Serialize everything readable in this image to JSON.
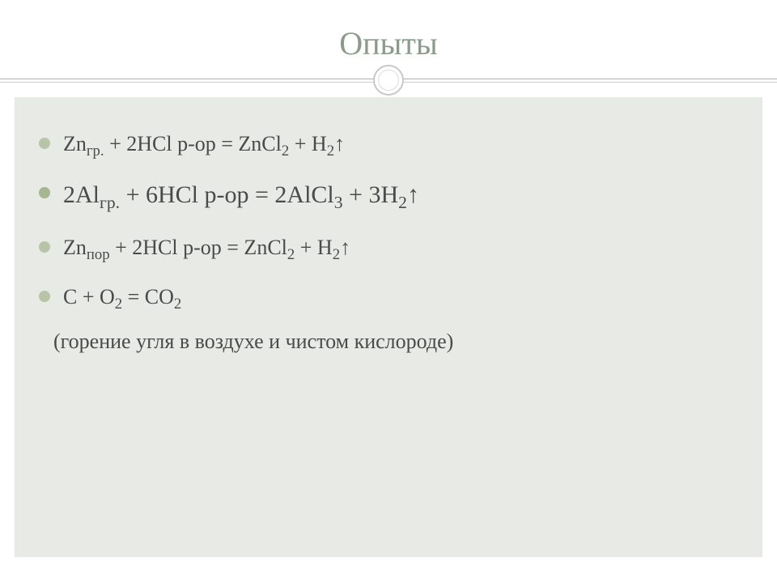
{
  "slide": {
    "title": "Опыты",
    "title_color": "#8a9b8a",
    "title_fontsize": 40,
    "background_color": "#ffffff",
    "content_background": "#e8eae6",
    "text_color": "#4a4a4a",
    "body_fontsize": 26,
    "emphasis_fontsize": 30,
    "bullet_colors": [
      "#b8c4a8",
      "#a6b78f",
      "#b8c4a8",
      "#b8c4a8"
    ],
    "items": [
      {
        "prefix": "Zn",
        "sub1": "гр.",
        "mid": " + 2HCl р-ор = ZnCl",
        "sub2": "2",
        "mid2": " + H",
        "sub3": "2",
        "suffix": "↑",
        "emphasis": false
      },
      {
        "prefix": "2Al",
        "sub1": "гр.",
        "mid": " + 6HCl р-ор = 2AlCl",
        "sub2": "3",
        "mid2": " + 3H",
        "sub3": "2",
        "suffix": "↑",
        "emphasis": true
      },
      {
        "prefix": "Zn",
        "sub1": "пор",
        "mid": " + 2HCl р-ор = ZnCl",
        "sub2": "2",
        "mid2": " + H",
        "sub3": "2",
        "suffix": "↑",
        "emphasis": false
      },
      {
        "prefix": "C + O",
        "sub1": "2",
        "mid": " = CO",
        "sub2": "2",
        "mid2": "",
        "sub3": "",
        "suffix": "",
        "emphasis": false
      }
    ],
    "note": "(горение угля в воздухе и чистом кислороде)"
  }
}
